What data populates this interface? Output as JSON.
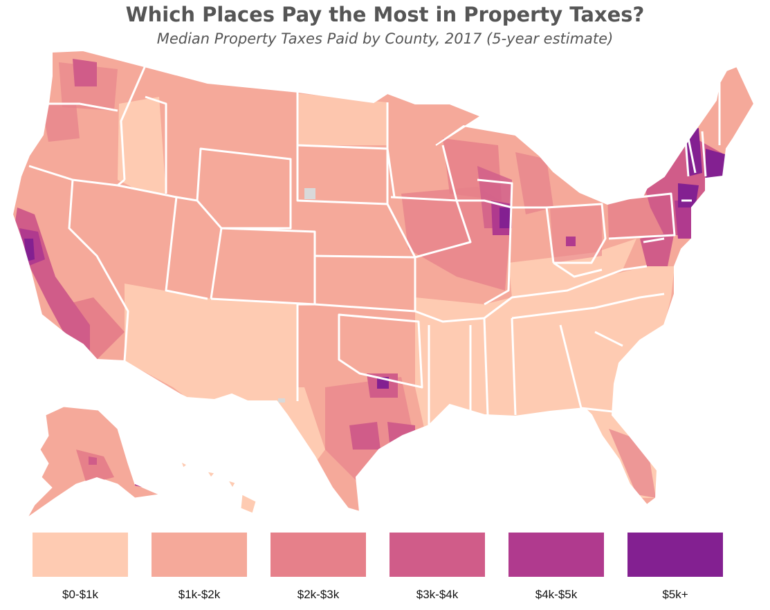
{
  "title": "Which Places Pay the Most in Property Taxes?",
  "subtitle": "Median Property Taxes Paid by County, 2017 (5-year estimate)",
  "legend": [
    {
      "label": "$0-$1k",
      "color": "#fecbb2"
    },
    {
      "label": "$1k-$2k",
      "color": "#f5a99a"
    },
    {
      "label": "$2k-$3k",
      "color": "#e6808a"
    },
    {
      "label": "$3k-$4k",
      "color": "#d05c89"
    },
    {
      "label": "$4k-$5k",
      "color": "#b03a8e"
    },
    {
      "label": "$5k+",
      "color": "#832091"
    }
  ],
  "no_data_color": "#d9d9d9",
  "map": {
    "projection": "albers-usa",
    "area": "contiguous-us-alaska-hawaii",
    "unit": "county"
  }
}
